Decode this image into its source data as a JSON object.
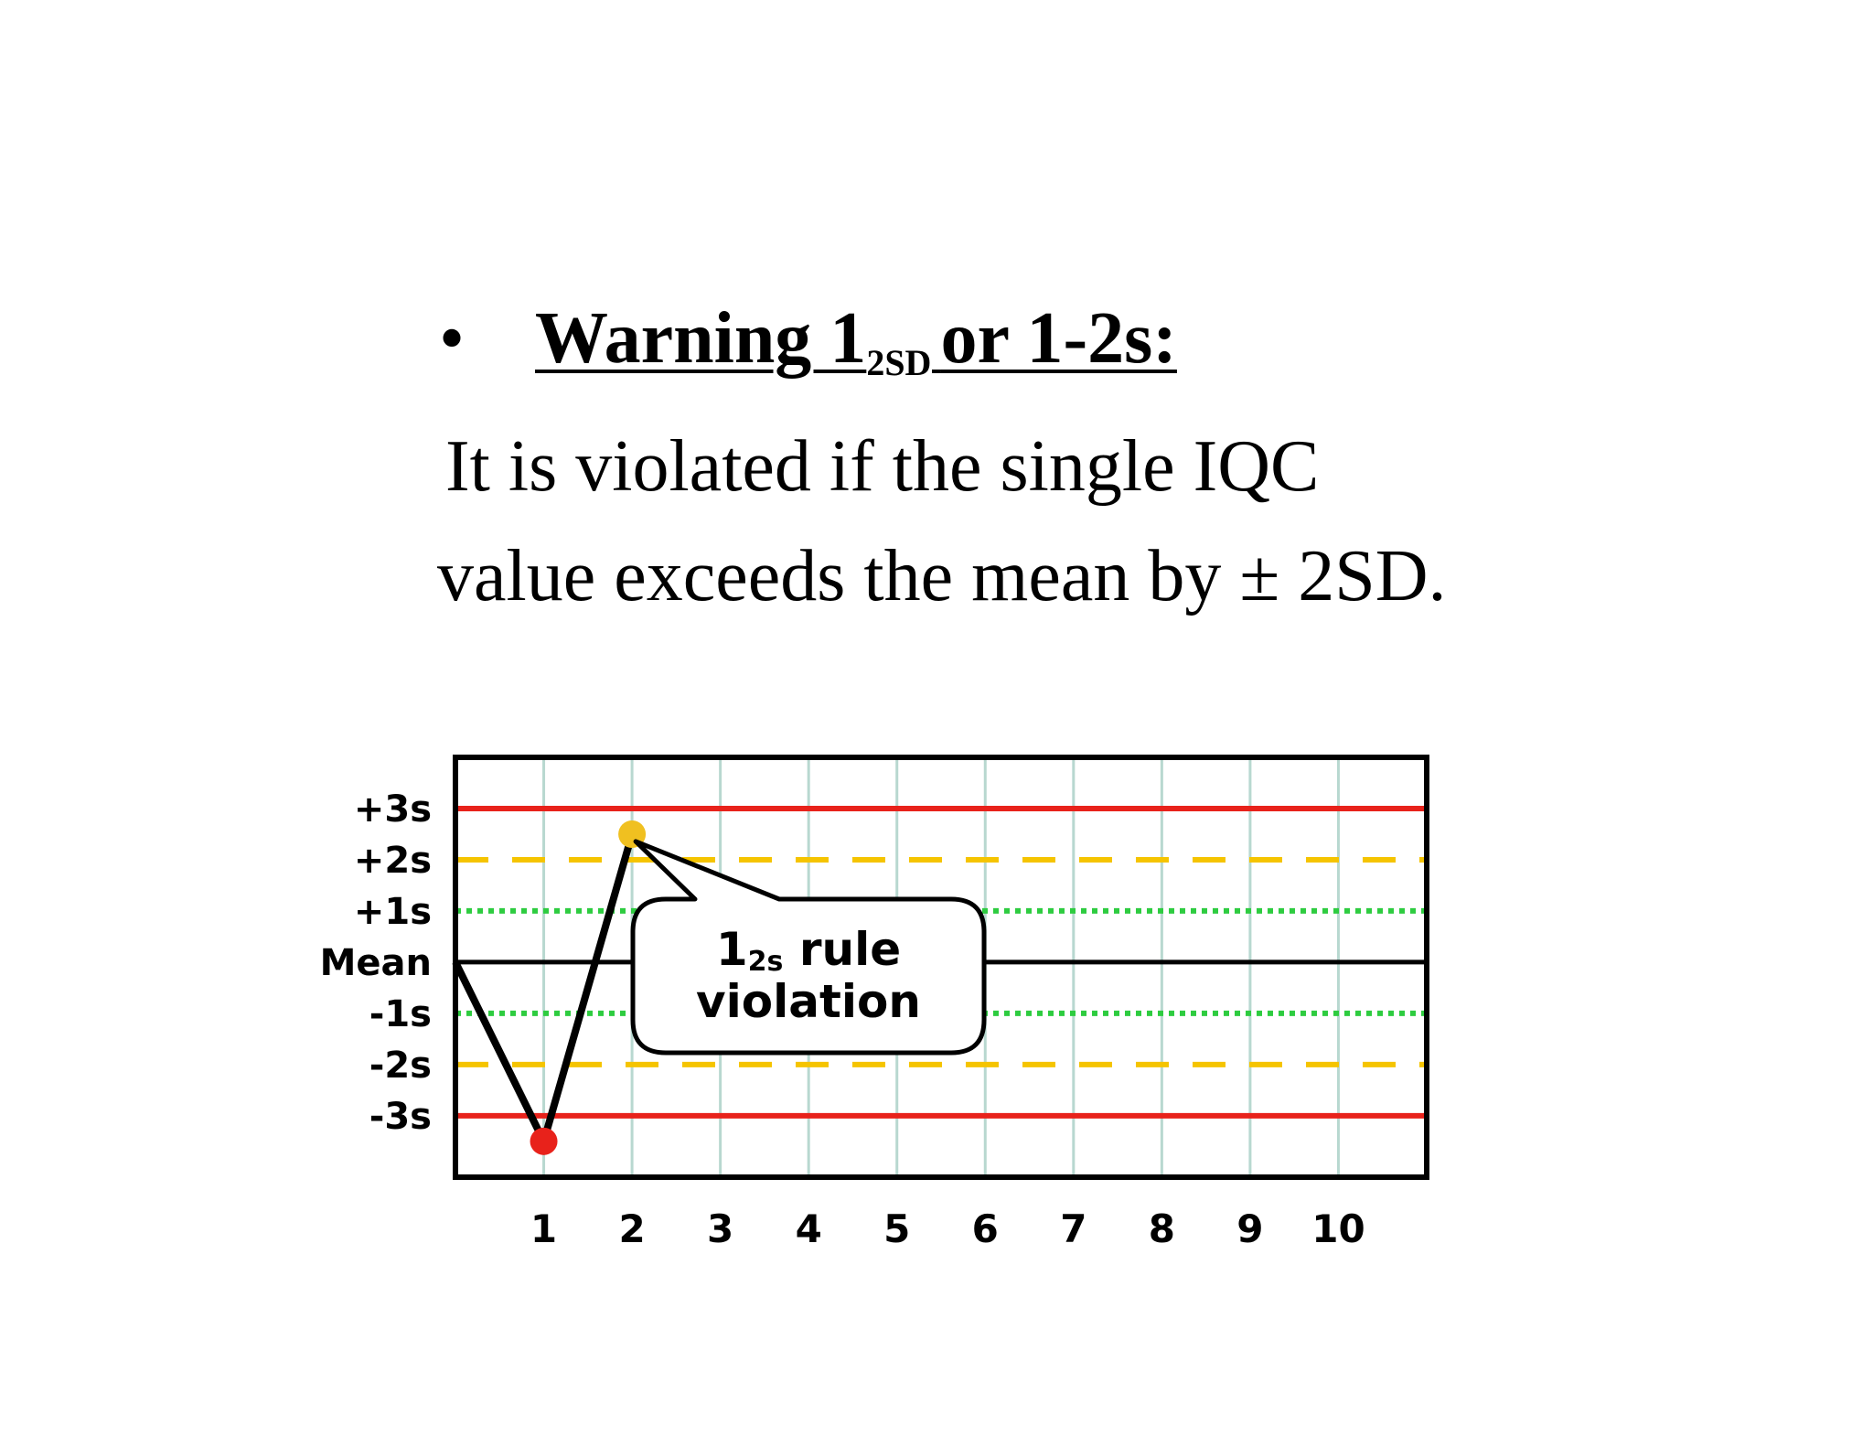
{
  "slide": {
    "bullet": "•",
    "heading_main": "Warning 1",
    "heading_sub": "2SD ",
    "heading_tail": "or 1-2s:",
    "line1": "It is violated if the single IQC",
    "line2": "value exceeds the mean by ± 2SD."
  },
  "callout": {
    "num": "1",
    "sub": "2s",
    "word": " rule",
    "line2": "violation"
  },
  "colors": {
    "limit3s": "#e8221b",
    "limit2s": "#f5c400",
    "limit1s": "#2ecc40",
    "mean": "#000000",
    "grid": "#b8d8d0",
    "point_violation": "#f0c020",
    "point_low": "#e8221b"
  },
  "chart_data": {
    "type": "line",
    "title": "",
    "xlabel": "",
    "ylabel": "",
    "x_ticks": [
      "1",
      "2",
      "3",
      "4",
      "5",
      "6",
      "7",
      "8",
      "9",
      "10"
    ],
    "y_ticks": [
      {
        "label": "+3s",
        "value": 3
      },
      {
        "label": "+2s",
        "value": 2
      },
      {
        "label": "+1s",
        "value": 1
      },
      {
        "label": "Mean",
        "value": 0
      },
      {
        "label": "-1s",
        "value": -1
      },
      {
        "label": "-2s",
        "value": -2
      },
      {
        "label": "-3s",
        "value": -3
      }
    ],
    "ylim": [
      -4.2,
      4.0
    ],
    "xlim": [
      0,
      11
    ],
    "limit_lines": [
      {
        "value": 3,
        "style": "solid",
        "color_key": "limit3s"
      },
      {
        "value": 2,
        "style": "dashed",
        "color_key": "limit2s"
      },
      {
        "value": 1,
        "style": "dotted",
        "color_key": "limit1s"
      },
      {
        "value": 0,
        "style": "solid",
        "color_key": "mean"
      },
      {
        "value": -1,
        "style": "dotted",
        "color_key": "limit1s"
      },
      {
        "value": -2,
        "style": "dashed",
        "color_key": "limit2s"
      },
      {
        "value": -3,
        "style": "solid",
        "color_key": "limit3s"
      }
    ],
    "series": [
      {
        "points": [
          {
            "x": 0,
            "y": 0
          },
          {
            "x": 1,
            "y": -3.5
          },
          {
            "x": 2,
            "y": 2.5
          }
        ],
        "markers": [
          {
            "x": 1,
            "y": -3.5,
            "color_key": "point_low"
          },
          {
            "x": 2,
            "y": 2.5,
            "color_key": "point_violation"
          }
        ]
      }
    ]
  }
}
